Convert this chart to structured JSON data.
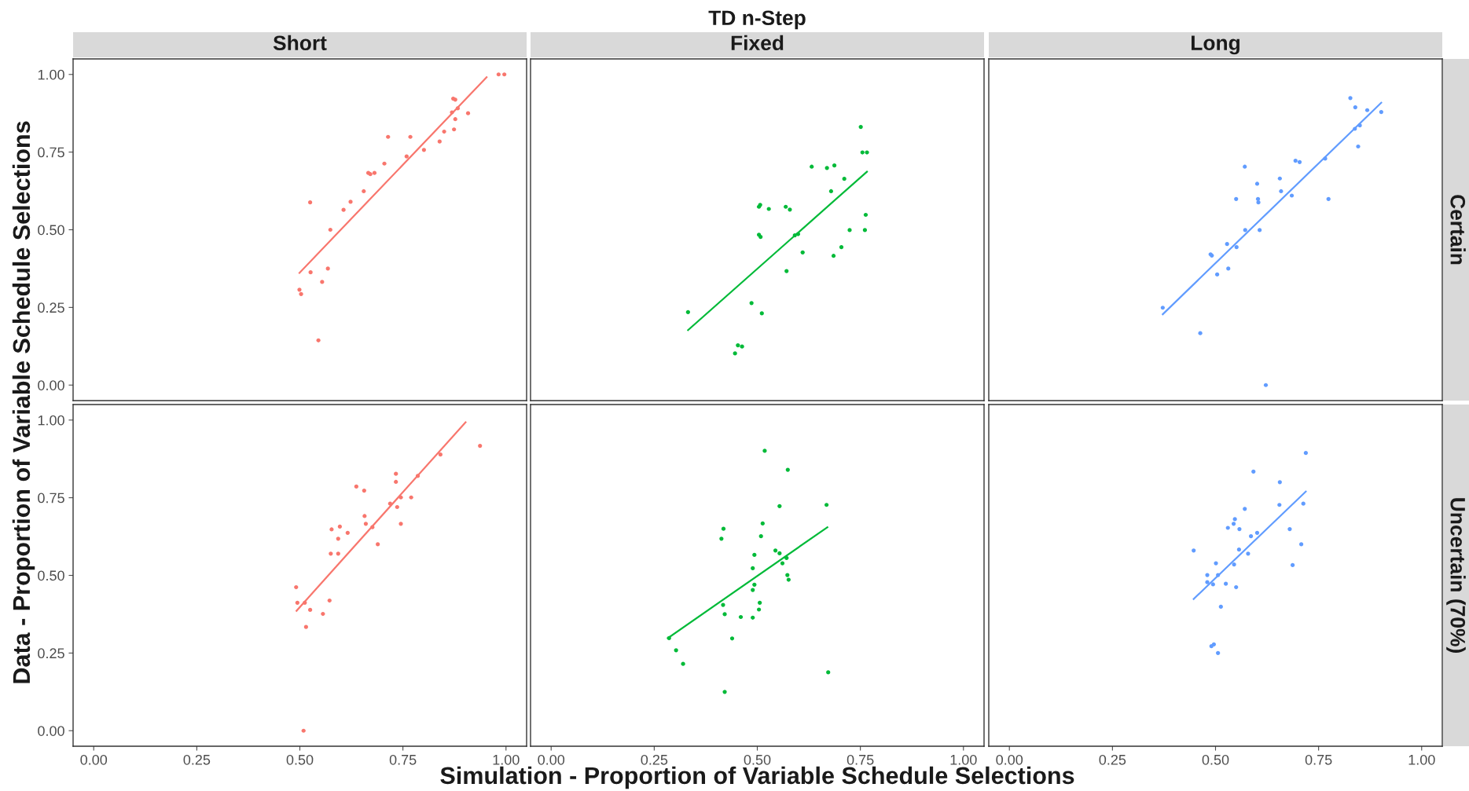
{
  "chart_data": [
    {
      "type": "scatter",
      "subtitle": "Short",
      "ylabel": "Data - Proportion of Variable Schedule Selections",
      "tick_labels": "y",
      "grid": false,
      "xlim": [
        -0.05,
        1.05
      ],
      "ylim": [
        -0.05,
        1.05
      ],
      "yticks": [
        {
          "value": 0,
          "label": "0.00"
        },
        {
          "value": 0.25,
          "label": "0.25"
        },
        {
          "value": 0.5,
          "label": "0.50"
        },
        {
          "value": 0.75,
          "label": "0.75"
        },
        {
          "value": 1,
          "label": "1.00"
        }
      ],
      "series": [
        {
          "type": "scatter",
          "marker": "circle",
          "color": "#f8766d",
          "x": [
            0.499,
            0.503,
            0.525,
            0.526,
            0.554,
            0.545,
            0.568,
            0.574,
            0.606,
            0.623,
            0.655,
            0.666,
            0.671,
            0.681,
            0.705,
            0.714,
            0.759,
            0.768,
            0.801,
            0.839,
            0.85,
            0.869,
            0.872,
            0.877,
            0.877,
            0.874,
            0.883,
            0.908,
            0.982,
            0.996
          ],
          "values": [
            0.307,
            0.293,
            0.588,
            0.363,
            0.332,
            0.144,
            0.375,
            0.5,
            0.564,
            0.59,
            0.624,
            0.683,
            0.679,
            0.683,
            0.713,
            0.799,
            0.736,
            0.799,
            0.757,
            0.784,
            0.816,
            0.878,
            0.922,
            0.919,
            0.856,
            0.823,
            0.891,
            0.875,
            1.0,
            1.0
          ]
        },
        {
          "type": "line",
          "line_style": "solid",
          "color": "#f8766d",
          "x": [
            0.499,
            0.953
          ],
          "values": [
            0.361,
            0.991
          ]
        }
      ]
    },
    {
      "type": "scatter",
      "title": "TD n-Step",
      "subtitle": "Fixed",
      "tick_labels": false,
      "grid": false,
      "xlim": [
        -0.05,
        1.05
      ],
      "ylim": [
        -0.05,
        1.05
      ],
      "series": [
        {
          "type": "scatter",
          "marker": "circle",
          "color": "#00ba38",
          "x": [
            0.332,
            0.446,
            0.453,
            0.463,
            0.486,
            0.511,
            0.504,
            0.508,
            0.504,
            0.507,
            0.528,
            0.569,
            0.571,
            0.579,
            0.591,
            0.599,
            0.61,
            0.632,
            0.669,
            0.679,
            0.687,
            0.685,
            0.704,
            0.711,
            0.724,
            0.751,
            0.755,
            0.766,
            0.763,
            0.761
          ],
          "values": [
            0.235,
            0.102,
            0.128,
            0.124,
            0.264,
            0.231,
            0.484,
            0.477,
            0.574,
            0.58,
            0.567,
            0.574,
            0.367,
            0.565,
            0.482,
            0.486,
            0.427,
            0.703,
            0.699,
            0.624,
            0.707,
            0.416,
            0.444,
            0.664,
            0.499,
            0.831,
            0.749,
            0.749,
            0.548,
            0.499
          ]
        },
        {
          "type": "line",
          "line_style": "solid",
          "color": "#00ba38",
          "x": [
            0.332,
            0.766
          ],
          "values": [
            0.177,
            0.687
          ]
        }
      ]
    },
    {
      "type": "scatter",
      "subtitle": "Long",
      "annotations": [
        "Certain"
      ],
      "tick_labels": false,
      "grid": false,
      "xlim": [
        -0.05,
        1.05
      ],
      "ylim": [
        -0.05,
        1.05
      ],
      "series": [
        {
          "type": "scatter",
          "marker": "circle",
          "color": "#619cff",
          "x": [
            0.372,
            0.463,
            0.488,
            0.491,
            0.504,
            0.528,
            0.531,
            0.55,
            0.551,
            0.571,
            0.572,
            0.601,
            0.603,
            0.604,
            0.607,
            0.622,
            0.656,
            0.659,
            0.685,
            0.694,
            0.704,
            0.766,
            0.774,
            0.827,
            0.839,
            0.838,
            0.85,
            0.846,
            0.868,
            0.902
          ],
          "values": [
            0.249,
            0.167,
            0.421,
            0.417,
            0.356,
            0.454,
            0.375,
            0.599,
            0.444,
            0.703,
            0.499,
            0.648,
            0.599,
            0.588,
            0.499,
            0.0,
            0.665,
            0.624,
            0.61,
            0.722,
            0.718,
            0.729,
            0.599,
            0.924,
            0.894,
            0.825,
            0.836,
            0.768,
            0.885,
            0.879
          ]
        },
        {
          "type": "line",
          "line_style": "solid",
          "color": "#619cff",
          "x": [
            0.372,
            0.902
          ],
          "values": [
            0.228,
            0.909
          ]
        }
      ]
    },
    {
      "type": "scatter",
      "grid": false,
      "xlim": [
        -0.05,
        1.05
      ],
      "ylim": [
        -0.05,
        1.05
      ],
      "xticks": [
        {
          "value": 0,
          "label": "0.00"
        },
        {
          "value": 0.25,
          "label": "0.25"
        },
        {
          "value": 0.5,
          "label": "0.50"
        },
        {
          "value": 0.75,
          "label": "0.75"
        },
        {
          "value": 1,
          "label": "1.00"
        }
      ],
      "yticks": [
        {
          "value": 0,
          "label": "0.00"
        },
        {
          "value": 0.25,
          "label": "0.25"
        },
        {
          "value": 0.5,
          "label": "0.50"
        },
        {
          "value": 0.75,
          "label": "0.75"
        },
        {
          "value": 1,
          "label": "1.00"
        }
      ],
      "series": [
        {
          "type": "scatter",
          "marker": "circle",
          "color": "#f8766d",
          "x": [
            0.491,
            0.494,
            0.512,
            0.509,
            0.515,
            0.525,
            0.556,
            0.572,
            0.575,
            0.577,
            0.593,
            0.593,
            0.597,
            0.616,
            0.637,
            0.656,
            0.657,
            0.66,
            0.676,
            0.689,
            0.719,
            0.733,
            0.733,
            0.736,
            0.745,
            0.745,
            0.77,
            0.786,
            0.841,
            0.937
          ],
          "values": [
            0.462,
            0.412,
            0.412,
            0.0,
            0.334,
            0.389,
            0.376,
            0.419,
            0.57,
            0.648,
            0.618,
            0.57,
            0.657,
            0.637,
            0.786,
            0.773,
            0.691,
            0.666,
            0.655,
            0.6,
            0.731,
            0.827,
            0.801,
            0.72,
            0.751,
            0.666,
            0.751,
            0.82,
            0.889,
            0.917
          ]
        },
        {
          "type": "line",
          "line_style": "solid",
          "color": "#f8766d",
          "x": [
            0.492,
            0.902
          ],
          "values": [
            0.386,
            0.993
          ]
        }
      ]
    },
    {
      "type": "scatter",
      "xlabel": "Simulation - Proportion of Variable Schedule Selections",
      "tick_labels": "x",
      "grid": false,
      "xlim": [
        -0.05,
        1.05
      ],
      "ylim": [
        -0.05,
        1.05
      ],
      "xticks": [
        {
          "value": 0,
          "label": "0.00"
        },
        {
          "value": 0.25,
          "label": "0.25"
        },
        {
          "value": 0.5,
          "label": "0.50"
        },
        {
          "value": 0.75,
          "label": "0.75"
        },
        {
          "value": 1,
          "label": "1.00"
        }
      ],
      "series": [
        {
          "type": "scatter",
          "marker": "circle",
          "color": "#00ba38",
          "x": [
            0.286,
            0.303,
            0.32,
            0.413,
            0.418,
            0.417,
            0.421,
            0.421,
            0.439,
            0.46,
            0.489,
            0.489,
            0.493,
            0.489,
            0.493,
            0.504,
            0.506,
            0.509,
            0.513,
            0.518,
            0.544,
            0.554,
            0.554,
            0.561,
            0.571,
            0.573,
            0.576,
            0.574,
            0.668,
            0.672
          ],
          "values": [
            0.298,
            0.259,
            0.215,
            0.618,
            0.65,
            0.405,
            0.375,
            0.125,
            0.297,
            0.366,
            0.364,
            0.453,
            0.47,
            0.523,
            0.566,
            0.39,
            0.412,
            0.626,
            0.667,
            0.901,
            0.58,
            0.571,
            0.723,
            0.539,
            0.556,
            0.501,
            0.486,
            0.84,
            0.727,
            0.188
          ]
        },
        {
          "type": "line",
          "line_style": "solid",
          "color": "#00ba38",
          "x": [
            0.283,
            0.67
          ],
          "values": [
            0.298,
            0.655
          ]
        }
      ]
    },
    {
      "type": "scatter",
      "annotations": [
        "Uncertain (70%)"
      ],
      "tick_labels": "x",
      "grid": false,
      "xlim": [
        -0.05,
        1.05
      ],
      "ylim": [
        -0.05,
        1.05
      ],
      "xticks": [
        {
          "value": 0,
          "label": "0.00"
        },
        {
          "value": 0.25,
          "label": "0.25"
        },
        {
          "value": 0.5,
          "label": "0.50"
        },
        {
          "value": 0.75,
          "label": "0.75"
        },
        {
          "value": 1,
          "label": "1.00"
        }
      ],
      "series": [
        {
          "type": "scatter",
          "marker": "circle",
          "color": "#619cff",
          "x": [
            0.447,
            0.48,
            0.48,
            0.49,
            0.496,
            0.506,
            0.494,
            0.501,
            0.506,
            0.513,
            0.525,
            0.53,
            0.544,
            0.547,
            0.545,
            0.55,
            0.557,
            0.558,
            0.571,
            0.579,
            0.586,
            0.592,
            0.601,
            0.655,
            0.656,
            0.68,
            0.687,
            0.708,
            0.713,
            0.719
          ],
          "values": [
            0.58,
            0.501,
            0.478,
            0.272,
            0.278,
            0.25,
            0.471,
            0.539,
            0.501,
            0.399,
            0.473,
            0.653,
            0.666,
            0.681,
            0.535,
            0.462,
            0.583,
            0.649,
            0.714,
            0.57,
            0.626,
            0.834,
            0.637,
            0.727,
            0.8,
            0.649,
            0.533,
            0.6,
            0.731,
            0.894
          ]
        },
        {
          "type": "line",
          "line_style": "solid",
          "color": "#619cff",
          "x": [
            0.447,
            0.719
          ],
          "values": [
            0.424,
            0.77
          ]
        }
      ]
    }
  ]
}
